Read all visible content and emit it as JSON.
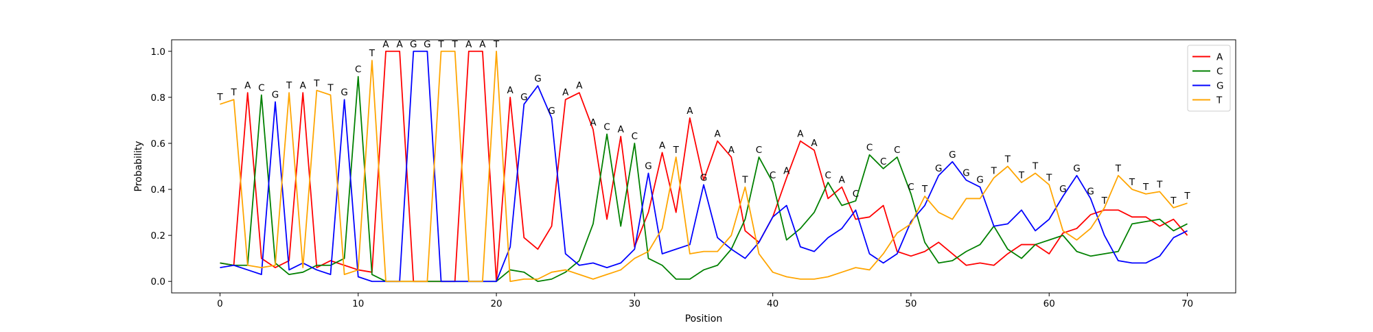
{
  "chart_data": {
    "type": "line",
    "title": "",
    "xlabel": "Position",
    "ylabel": "Probability",
    "xlim": [
      -3.5,
      73.5
    ],
    "ylim": [
      -0.05,
      1.05
    ],
    "x_ticks": [
      0,
      10,
      20,
      30,
      40,
      50,
      60,
      70
    ],
    "y_ticks": [
      0.0,
      0.2,
      0.4,
      0.6,
      0.8,
      1.0
    ],
    "x_tick_labels": [
      "0",
      "10",
      "20",
      "30",
      "40",
      "50",
      "60",
      "70"
    ],
    "y_tick_labels": [
      "0.0",
      "0.2",
      "0.4",
      "0.6",
      "0.8",
      "1.0"
    ],
    "grid": false,
    "legend_position": "top-right",
    "series": [
      {
        "name": "A",
        "color": "#ff0000",
        "values": [
          0.08,
          0.07,
          0.82,
          0.1,
          0.06,
          0.09,
          0.82,
          0.06,
          0.09,
          0.07,
          0.05,
          0.04,
          1.0,
          1.0,
          0.0,
          0.0,
          0.0,
          0.0,
          1.0,
          1.0,
          0.0,
          0.8,
          0.19,
          0.14,
          0.24,
          0.79,
          0.82,
          0.66,
          0.27,
          0.63,
          0.15,
          0.3,
          0.56,
          0.3,
          0.71,
          0.44,
          0.61,
          0.54,
          0.22,
          0.17,
          0.28,
          0.45,
          0.61,
          0.57,
          0.36,
          0.41,
          0.27,
          0.28,
          0.33,
          0.13,
          0.11,
          0.13,
          0.17,
          0.12,
          0.07,
          0.08,
          0.07,
          0.12,
          0.16,
          0.16,
          0.12,
          0.21,
          0.23,
          0.29,
          0.31,
          0.31,
          0.28,
          0.28,
          0.24,
          0.27,
          0.2
        ]
      },
      {
        "name": "C",
        "color": "#008000",
        "values": [
          0.08,
          0.07,
          0.07,
          0.81,
          0.08,
          0.03,
          0.04,
          0.07,
          0.07,
          0.1,
          0.89,
          0.03,
          0.0,
          0.0,
          0.0,
          0.0,
          0.0,
          0.0,
          0.0,
          0.0,
          0.0,
          0.05,
          0.04,
          0.0,
          0.01,
          0.04,
          0.09,
          0.25,
          0.64,
          0.24,
          0.6,
          0.1,
          0.07,
          0.01,
          0.01,
          0.05,
          0.07,
          0.14,
          0.27,
          0.54,
          0.43,
          0.18,
          0.23,
          0.3,
          0.43,
          0.33,
          0.35,
          0.55,
          0.49,
          0.54,
          0.38,
          0.17,
          0.08,
          0.09,
          0.13,
          0.16,
          0.24,
          0.14,
          0.1,
          0.16,
          0.18,
          0.2,
          0.13,
          0.11,
          0.12,
          0.13,
          0.25,
          0.26,
          0.27,
          0.22,
          0.25
        ]
      },
      {
        "name": "G",
        "color": "#0000ff",
        "values": [
          0.06,
          0.07,
          0.05,
          0.03,
          0.78,
          0.05,
          0.08,
          0.05,
          0.03,
          0.79,
          0.02,
          0.0,
          0.0,
          0.0,
          1.0,
          1.0,
          0.0,
          0.0,
          0.0,
          0.0,
          0.0,
          0.15,
          0.77,
          0.85,
          0.71,
          0.12,
          0.07,
          0.08,
          0.06,
          0.08,
          0.14,
          0.47,
          0.12,
          0.14,
          0.16,
          0.42,
          0.19,
          0.14,
          0.1,
          0.17,
          0.28,
          0.33,
          0.15,
          0.13,
          0.19,
          0.23,
          0.31,
          0.12,
          0.08,
          0.12,
          0.26,
          0.33,
          0.46,
          0.52,
          0.44,
          0.41,
          0.24,
          0.25,
          0.31,
          0.22,
          0.27,
          0.37,
          0.46,
          0.36,
          0.2,
          0.09,
          0.08,
          0.08,
          0.11,
          0.19,
          0.22
        ]
      },
      {
        "name": "T",
        "color": "#ffa500",
        "values": [
          0.77,
          0.79,
          0.07,
          0.06,
          0.07,
          0.82,
          0.06,
          0.83,
          0.81,
          0.03,
          0.05,
          0.96,
          0.0,
          0.0,
          0.0,
          0.0,
          1.0,
          1.0,
          0.0,
          0.0,
          1.0,
          0.0,
          0.01,
          0.01,
          0.04,
          0.05,
          0.03,
          0.01,
          0.03,
          0.05,
          0.1,
          0.13,
          0.23,
          0.54,
          0.12,
          0.13,
          0.13,
          0.2,
          0.41,
          0.12,
          0.04,
          0.02,
          0.01,
          0.01,
          0.02,
          0.04,
          0.06,
          0.05,
          0.12,
          0.21,
          0.25,
          0.37,
          0.3,
          0.27,
          0.36,
          0.36,
          0.45,
          0.5,
          0.43,
          0.47,
          0.42,
          0.22,
          0.18,
          0.23,
          0.32,
          0.46,
          0.4,
          0.38,
          0.39,
          0.32,
          0.34
        ]
      }
    ],
    "annotations": [
      {
        "x": 0,
        "y": 0.77,
        "text": "T"
      },
      {
        "x": 1,
        "y": 0.79,
        "text": "T"
      },
      {
        "x": 2,
        "y": 0.82,
        "text": "A"
      },
      {
        "x": 3,
        "y": 0.81,
        "text": "C"
      },
      {
        "x": 4,
        "y": 0.78,
        "text": "G"
      },
      {
        "x": 5,
        "y": 0.82,
        "text": "T"
      },
      {
        "x": 6,
        "y": 0.82,
        "text": "A"
      },
      {
        "x": 7,
        "y": 0.83,
        "text": "T"
      },
      {
        "x": 8,
        "y": 0.81,
        "text": "T"
      },
      {
        "x": 9,
        "y": 0.79,
        "text": "G"
      },
      {
        "x": 10,
        "y": 0.89,
        "text": "C"
      },
      {
        "x": 11,
        "y": 0.96,
        "text": "T"
      },
      {
        "x": 12,
        "y": 1.0,
        "text": "A"
      },
      {
        "x": 13,
        "y": 1.0,
        "text": "A"
      },
      {
        "x": 14,
        "y": 1.0,
        "text": "G"
      },
      {
        "x": 15,
        "y": 1.0,
        "text": "G"
      },
      {
        "x": 16,
        "y": 1.0,
        "text": "T"
      },
      {
        "x": 17,
        "y": 1.0,
        "text": "T"
      },
      {
        "x": 18,
        "y": 1.0,
        "text": "A"
      },
      {
        "x": 19,
        "y": 1.0,
        "text": "A"
      },
      {
        "x": 20,
        "y": 1.0,
        "text": "T"
      },
      {
        "x": 21,
        "y": 0.8,
        "text": "A"
      },
      {
        "x": 22,
        "y": 0.77,
        "text": "G"
      },
      {
        "x": 23,
        "y": 0.85,
        "text": "G"
      },
      {
        "x": 24,
        "y": 0.71,
        "text": "G"
      },
      {
        "x": 25,
        "y": 0.79,
        "text": "A"
      },
      {
        "x": 26,
        "y": 0.82,
        "text": "A"
      },
      {
        "x": 27,
        "y": 0.66,
        "text": "A"
      },
      {
        "x": 28,
        "y": 0.64,
        "text": "C"
      },
      {
        "x": 29,
        "y": 0.63,
        "text": "A"
      },
      {
        "x": 30,
        "y": 0.6,
        "text": "C"
      },
      {
        "x": 31,
        "y": 0.47,
        "text": "G"
      },
      {
        "x": 32,
        "y": 0.56,
        "text": "A"
      },
      {
        "x": 33,
        "y": 0.54,
        "text": "T"
      },
      {
        "x": 34,
        "y": 0.71,
        "text": "A"
      },
      {
        "x": 35,
        "y": 0.42,
        "text": "G"
      },
      {
        "x": 36,
        "y": 0.61,
        "text": "A"
      },
      {
        "x": 37,
        "y": 0.54,
        "text": "A"
      },
      {
        "x": 38,
        "y": 0.41,
        "text": "T"
      },
      {
        "x": 39,
        "y": 0.54,
        "text": "C"
      },
      {
        "x": 40,
        "y": 0.43,
        "text": "C"
      },
      {
        "x": 41,
        "y": 0.45,
        "text": "A"
      },
      {
        "x": 42,
        "y": 0.61,
        "text": "A"
      },
      {
        "x": 43,
        "y": 0.57,
        "text": "A"
      },
      {
        "x": 44,
        "y": 0.43,
        "text": "C"
      },
      {
        "x": 45,
        "y": 0.41,
        "text": "A"
      },
      {
        "x": 46,
        "y": 0.35,
        "text": "C"
      },
      {
        "x": 47,
        "y": 0.55,
        "text": "C"
      },
      {
        "x": 48,
        "y": 0.49,
        "text": "C"
      },
      {
        "x": 49,
        "y": 0.54,
        "text": "C"
      },
      {
        "x": 50,
        "y": 0.38,
        "text": "C"
      },
      {
        "x": 51,
        "y": 0.37,
        "text": "T"
      },
      {
        "x": 52,
        "y": 0.46,
        "text": "G"
      },
      {
        "x": 53,
        "y": 0.52,
        "text": "G"
      },
      {
        "x": 54,
        "y": 0.44,
        "text": "G"
      },
      {
        "x": 55,
        "y": 0.41,
        "text": "G"
      },
      {
        "x": 56,
        "y": 0.45,
        "text": "T"
      },
      {
        "x": 57,
        "y": 0.5,
        "text": "T"
      },
      {
        "x": 58,
        "y": 0.43,
        "text": "T"
      },
      {
        "x": 59,
        "y": 0.47,
        "text": "T"
      },
      {
        "x": 60,
        "y": 0.42,
        "text": "T"
      },
      {
        "x": 61,
        "y": 0.37,
        "text": "G"
      },
      {
        "x": 62,
        "y": 0.46,
        "text": "G"
      },
      {
        "x": 63,
        "y": 0.36,
        "text": "G"
      },
      {
        "x": 64,
        "y": 0.32,
        "text": "T"
      },
      {
        "x": 65,
        "y": 0.46,
        "text": "T"
      },
      {
        "x": 66,
        "y": 0.4,
        "text": "T"
      },
      {
        "x": 67,
        "y": 0.38,
        "text": "T"
      },
      {
        "x": 68,
        "y": 0.39,
        "text": "T"
      },
      {
        "x": 69,
        "y": 0.32,
        "text": "T"
      },
      {
        "x": 70,
        "y": 0.34,
        "text": "T"
      }
    ]
  }
}
